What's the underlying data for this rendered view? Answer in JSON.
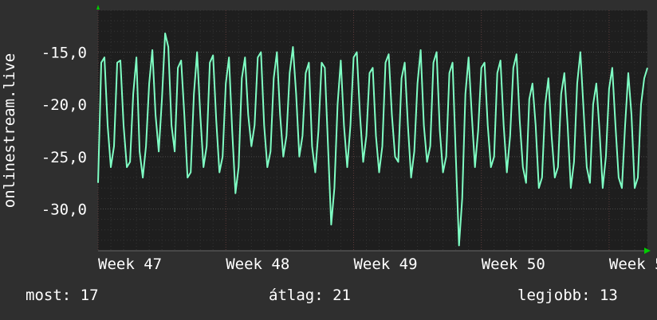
{
  "chart_data": {
    "type": "line",
    "ylabel": "onlinestream.live",
    "x_ticks": [
      "Week 47",
      "Week 48",
      "Week 49",
      "Week 50",
      "Week 5"
    ],
    "y_ticks": [
      "-15,0",
      "-20,0",
      "-25,0",
      "-30,0"
    ],
    "ylim": [
      -34,
      -11
    ],
    "xlim": [
      0,
      43
    ],
    "grid": true,
    "colors": {
      "background": "#2f2f2f",
      "plot": "#1e1e1e",
      "line": "#7fffc4",
      "grid": "#3c3c3c",
      "axis_marker": "#00cc00"
    },
    "series": [
      {
        "values": [
          [
            0.0,
            -27.5
          ],
          [
            0.25,
            -16.0
          ],
          [
            0.5,
            -15.5
          ],
          [
            0.75,
            -22.0
          ],
          [
            1.0,
            -26.0
          ],
          [
            1.25,
            -24.0
          ],
          [
            1.5,
            -16.0
          ],
          [
            1.75,
            -15.8
          ],
          [
            2.0,
            -22.0
          ],
          [
            2.25,
            -26.0
          ],
          [
            2.5,
            -25.5
          ],
          [
            2.75,
            -19.0
          ],
          [
            3.0,
            -15.5
          ],
          [
            3.25,
            -24.5
          ],
          [
            3.5,
            -27.0
          ],
          [
            3.75,
            -24.0
          ],
          [
            4.0,
            -18.0
          ],
          [
            4.25,
            -14.8
          ],
          [
            4.5,
            -21.0
          ],
          [
            4.75,
            -24.5
          ],
          [
            5.0,
            -19.5
          ],
          [
            5.25,
            -13.2
          ],
          [
            5.5,
            -14.5
          ],
          [
            5.75,
            -22.0
          ],
          [
            6.0,
            -24.5
          ],
          [
            6.25,
            -16.5
          ],
          [
            6.5,
            -15.8
          ],
          [
            6.75,
            -21.0
          ],
          [
            7.0,
            -27.0
          ],
          [
            7.25,
            -26.5
          ],
          [
            7.5,
            -19.0
          ],
          [
            7.75,
            -15.0
          ],
          [
            8.0,
            -21.0
          ],
          [
            8.25,
            -26.0
          ],
          [
            8.5,
            -24.0
          ],
          [
            8.75,
            -16.0
          ],
          [
            9.0,
            -15.3
          ],
          [
            9.25,
            -21.5
          ],
          [
            9.5,
            -26.5
          ],
          [
            9.75,
            -25.0
          ],
          [
            10.0,
            -18.0
          ],
          [
            10.25,
            -15.5
          ],
          [
            10.5,
            -22.5
          ],
          [
            10.75,
            -28.5
          ],
          [
            11.0,
            -26.0
          ],
          [
            11.25,
            -17.5
          ],
          [
            11.5,
            -15.5
          ],
          [
            11.75,
            -21.0
          ],
          [
            12.0,
            -24.0
          ],
          [
            12.25,
            -22.0
          ],
          [
            12.5,
            -15.5
          ],
          [
            12.75,
            -15.0
          ],
          [
            13.0,
            -22.0
          ],
          [
            13.25,
            -26.0
          ],
          [
            13.5,
            -24.5
          ],
          [
            13.75,
            -17.5
          ],
          [
            14.0,
            -15.0
          ],
          [
            14.25,
            -21.0
          ],
          [
            14.5,
            -25.0
          ],
          [
            14.75,
            -23.0
          ],
          [
            15.0,
            -17.0
          ],
          [
            15.25,
            -14.5
          ],
          [
            15.5,
            -19.0
          ],
          [
            15.75,
            -25.0
          ],
          [
            16.0,
            -23.0
          ],
          [
            16.25,
            -17.0
          ],
          [
            16.5,
            -16.0
          ],
          [
            16.75,
            -24.0
          ],
          [
            17.0,
            -26.5
          ],
          [
            17.25,
            -22.5
          ],
          [
            17.5,
            -16.0
          ],
          [
            17.75,
            -16.5
          ],
          [
            18.0,
            -24.0
          ],
          [
            18.25,
            -31.5
          ],
          [
            18.5,
            -28.0
          ],
          [
            18.75,
            -20.0
          ],
          [
            19.0,
            -15.8
          ],
          [
            19.25,
            -22.0
          ],
          [
            19.5,
            -26.0
          ],
          [
            19.75,
            -22.0
          ],
          [
            20.0,
            -15.5
          ],
          [
            20.25,
            -15.0
          ],
          [
            20.5,
            -21.0
          ],
          [
            20.75,
            -25.5
          ],
          [
            21.0,
            -23.0
          ],
          [
            21.25,
            -17.0
          ],
          [
            21.5,
            -16.5
          ],
          [
            21.75,
            -23.0
          ],
          [
            22.0,
            -26.5
          ],
          [
            22.25,
            -24.0
          ],
          [
            22.5,
            -16.0
          ],
          [
            22.75,
            -15.2
          ],
          [
            23.0,
            -21.0
          ],
          [
            23.25,
            -25.0
          ],
          [
            23.5,
            -25.5
          ],
          [
            23.75,
            -17.5
          ],
          [
            24.0,
            -16.0
          ],
          [
            24.25,
            -22.0
          ],
          [
            24.5,
            -27.0
          ],
          [
            24.75,
            -24.5
          ],
          [
            25.0,
            -18.0
          ],
          [
            25.25,
            -14.8
          ],
          [
            25.5,
            -22.0
          ],
          [
            25.75,
            -25.5
          ],
          [
            26.0,
            -24.0
          ],
          [
            26.25,
            -16.0
          ],
          [
            26.5,
            -15.0
          ],
          [
            26.75,
            -22.5
          ],
          [
            27.0,
            -26.5
          ],
          [
            27.25,
            -25.0
          ],
          [
            27.5,
            -17.0
          ],
          [
            27.75,
            -16.0
          ],
          [
            28.0,
            -25.0
          ],
          [
            28.25,
            -33.5
          ],
          [
            28.5,
            -29.0
          ],
          [
            28.75,
            -19.0
          ],
          [
            29.0,
            -15.5
          ],
          [
            29.25,
            -21.0
          ],
          [
            29.5,
            -26.0
          ],
          [
            29.75,
            -22.5
          ],
          [
            30.0,
            -16.5
          ],
          [
            30.25,
            -16.0
          ],
          [
            30.5,
            -22.0
          ],
          [
            30.75,
            -26.0
          ],
          [
            31.0,
            -25.0
          ],
          [
            31.25,
            -17.0
          ],
          [
            31.5,
            -15.8
          ],
          [
            31.75,
            -22.0
          ],
          [
            32.0,
            -26.5
          ],
          [
            32.25,
            -23.0
          ],
          [
            32.5,
            -16.5
          ],
          [
            32.75,
            -15.2
          ],
          [
            33.0,
            -21.5
          ],
          [
            33.25,
            -26.0
          ],
          [
            33.5,
            -27.5
          ],
          [
            33.75,
            -19.5
          ],
          [
            34.0,
            -18.0
          ],
          [
            34.25,
            -22.0
          ],
          [
            34.5,
            -28.0
          ],
          [
            34.75,
            -27.0
          ],
          [
            35.0,
            -20.0
          ],
          [
            35.25,
            -17.5
          ],
          [
            35.5,
            -23.0
          ],
          [
            35.75,
            -27.0
          ],
          [
            36.0,
            -26.0
          ],
          [
            36.25,
            -19.0
          ],
          [
            36.5,
            -17.0
          ],
          [
            36.75,
            -22.0
          ],
          [
            37.0,
            -28.0
          ],
          [
            37.25,
            -25.5
          ],
          [
            37.5,
            -18.0
          ],
          [
            37.75,
            -15.0
          ],
          [
            38.0,
            -20.5
          ],
          [
            38.25,
            -26.0
          ],
          [
            38.5,
            -27.5
          ],
          [
            38.75,
            -20.0
          ],
          [
            39.0,
            -18.0
          ],
          [
            39.25,
            -22.5
          ],
          [
            39.5,
            -28.0
          ],
          [
            39.75,
            -25.0
          ],
          [
            40.0,
            -18.5
          ],
          [
            40.25,
            -16.5
          ],
          [
            40.5,
            -22.0
          ],
          [
            40.75,
            -27.0
          ],
          [
            41.0,
            -28.0
          ],
          [
            41.25,
            -22.0
          ],
          [
            41.5,
            -17.0
          ],
          [
            41.75,
            -21.0
          ],
          [
            42.0,
            -28.0
          ],
          [
            42.25,
            -27.0
          ],
          [
            42.5,
            -20.0
          ],
          [
            42.75,
            -17.5
          ],
          [
            43.0,
            -16.5
          ]
        ]
      }
    ]
  },
  "stats": {
    "current": "most: 17",
    "average": "átlag: 21",
    "best": "legjobb: 13"
  }
}
